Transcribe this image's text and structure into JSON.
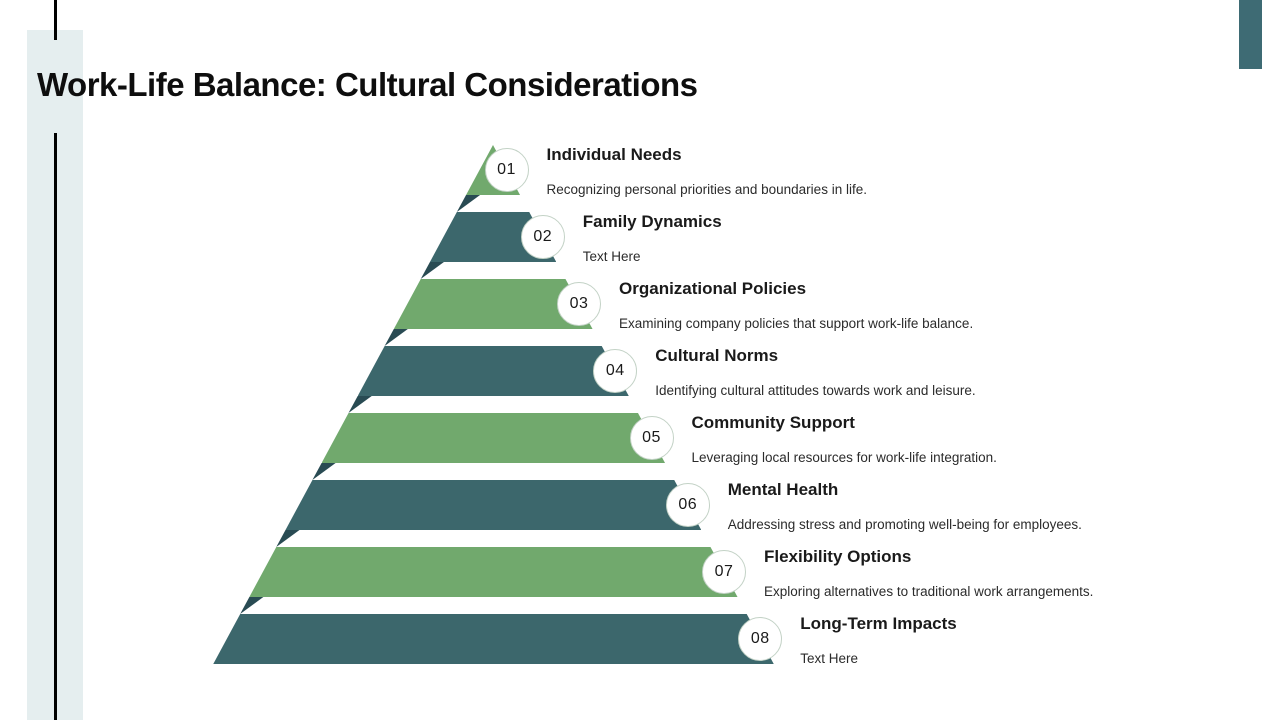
{
  "slide": {
    "title": "Work-Life Balance: Cultural Considerations",
    "steps": [
      {
        "number": "01",
        "title": "Individual Needs",
        "description": "Recognizing personal priorities and boundaries in life."
      },
      {
        "number": "02",
        "title": "Family Dynamics",
        "description": "Text Here"
      },
      {
        "number": "03",
        "title": "Organizational Policies",
        "description": "Examining company policies that support work-life balance."
      },
      {
        "number": "04",
        "title": "Cultural Norms",
        "description": "Identifying cultural attitudes towards work and leisure."
      },
      {
        "number": "05",
        "title": "Community Support",
        "description": "Leveraging local resources for work-life integration."
      },
      {
        "number": "06",
        "title": "Mental Health",
        "description": "Addressing stress and promoting well-being for employees."
      },
      {
        "number": "07",
        "title": "Flexibility Options",
        "description": "Exploring alternatives to traditional work arrangements."
      },
      {
        "number": "08",
        "title": "Long-Term Impacts",
        "description": "Text Here"
      }
    ],
    "colors": {
      "green": "#71a96d",
      "teal": "#3c676c",
      "fold": "#294b53",
      "corner_accent": "#3e6b74",
      "side_bar": "#e5eeef",
      "side_line": "#000000",
      "circle_fill": "#ffffff",
      "circle_border": "#c3d2c6",
      "title_text": "#0e0e0e",
      "step_title_text": "#1a1a1a",
      "step_desc_text": "#2b2b2b"
    }
  }
}
